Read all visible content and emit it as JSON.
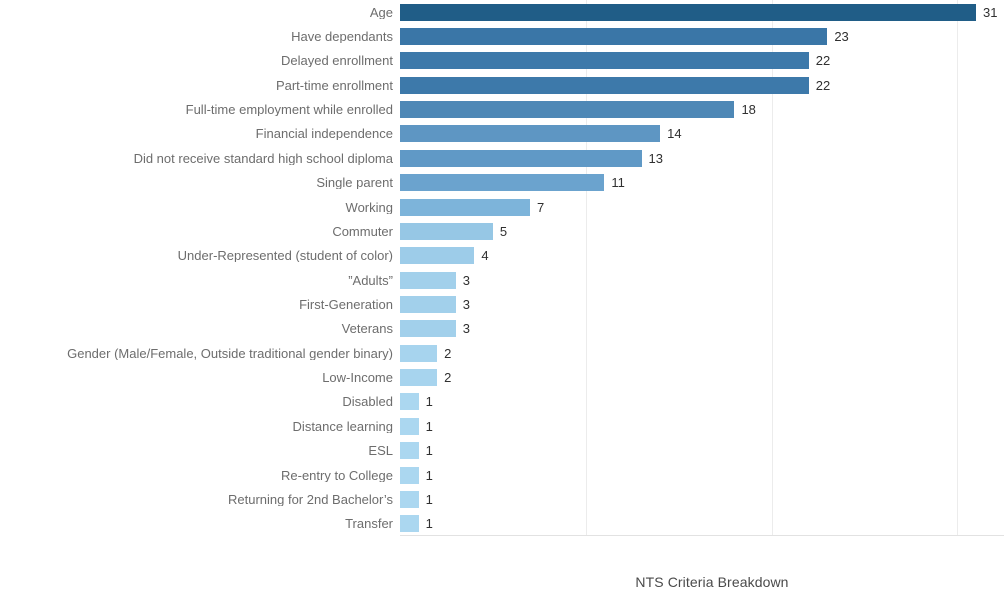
{
  "chart_data": {
    "type": "bar",
    "orientation": "horizontal",
    "title": "NTS Criteria Breakdown",
    "xlabel": "",
    "ylabel": "",
    "xlim": [
      0,
      32.5
    ],
    "gridline_values": [
      10,
      20,
      30
    ],
    "grid": "vertical-only",
    "legend_position": "none",
    "value_labels_shown": true,
    "categories": [
      "Age",
      "Have dependants",
      "Delayed enrollment",
      "Part-time enrollment",
      "Full-time employment while enrolled",
      "Financial independence",
      "Did not receive standard high school diploma",
      "Single parent",
      "Working",
      "Commuter",
      "Under-Represented (student of color)",
      "”Adults”",
      "First-Generation",
      "Veterans",
      "Gender (Male/Female, Outside traditional gender binary)",
      "Low-Income",
      "Disabled",
      "Distance learning",
      "ESL",
      "Re-entry to College",
      "Returning for 2nd Bachelor’s",
      "Transfer"
    ],
    "values": [
      31,
      23,
      22,
      22,
      18,
      14,
      13,
      11,
      7,
      5,
      4,
      3,
      3,
      3,
      2,
      2,
      1,
      1,
      1,
      1,
      1,
      1
    ],
    "bar_colors": [
      "#205d87",
      "#3a76a7",
      "#3d79aa",
      "#3d79aa",
      "#4e88b6",
      "#5e96c3",
      "#6099c6",
      "#6ba3ce",
      "#7db4da",
      "#96c7e5",
      "#9dcce9",
      "#a2d0eb",
      "#a2d0eb",
      "#a2d0eb",
      "#a7d4ee",
      "#a7d4ee",
      "#abd7f0",
      "#abd7f0",
      "#abd7f0",
      "#abd7f0",
      "#abd7f0",
      "#abd7f0"
    ]
  },
  "style": {
    "background": "#ffffff",
    "gridline_color": "#ececec",
    "axis_line_color": "#e2e2e2",
    "category_label_color": "#6d6d6d",
    "value_label_color": "#303030",
    "title_color": "#4a4a4a"
  }
}
